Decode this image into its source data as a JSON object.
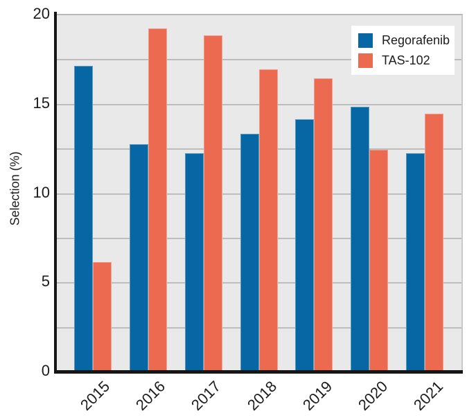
{
  "chart_data": {
    "type": "bar",
    "title": "",
    "xlabel": "",
    "ylabel": "Selection (%)",
    "categories": [
      "2015",
      "2016",
      "2017",
      "2018",
      "2019",
      "2020",
      "2021"
    ],
    "series": [
      {
        "name": "Regorafenib",
        "color": "#0667A4",
        "values": [
          17.1,
          12.7,
          12.2,
          13.3,
          14.1,
          14.8,
          12.2
        ]
      },
      {
        "name": "TAS-102",
        "color": "#EC6A50",
        "values": [
          6.1,
          19.2,
          18.8,
          16.9,
          16.4,
          12.4,
          14.4
        ]
      }
    ],
    "ylim": [
      0,
      20
    ],
    "ytick_labels": [
      "0",
      "5",
      "10",
      "15",
      "20"
    ],
    "ytick_values": [
      0,
      5,
      10,
      15,
      20
    ],
    "gridline_step": 2.5,
    "grid": true,
    "xtick_rotation": -45,
    "legend_position": "upper-right",
    "colors": {
      "plot_background": "#E9E9E9",
      "gridline": "#BDBDBD",
      "axis": "#161616",
      "text": "#1C1C1C",
      "figure_background": "#FFFFFF"
    }
  }
}
